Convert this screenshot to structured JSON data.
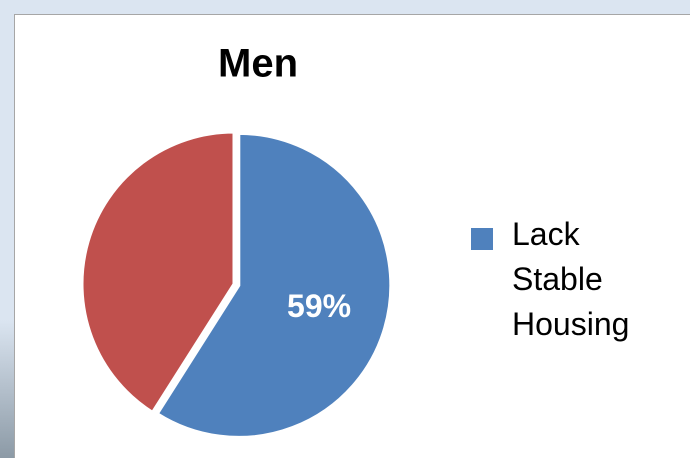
{
  "chart_data": {
    "type": "pie",
    "title": "Men",
    "categories": [
      "Lack Stable Housing",
      null
    ],
    "values": [
      59,
      41
    ],
    "value_labels": [
      "59%",
      null
    ],
    "colors": [
      "#4f81bd",
      "#c0504d"
    ]
  }
}
